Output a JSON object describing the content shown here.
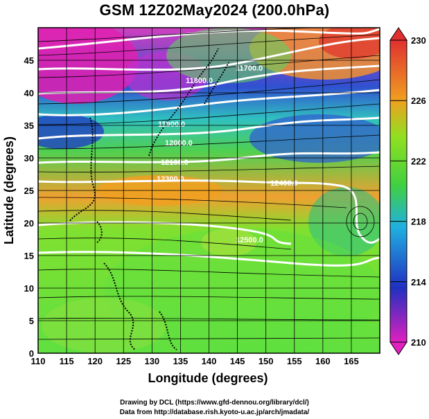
{
  "title": "GSM 12Z02May2024 (200.0hPa)",
  "x_axis": {
    "label": "Longitude (degrees)",
    "ticks": [
      "110",
      "115",
      "120",
      "125",
      "130",
      "135",
      "140",
      "145",
      "150",
      "155",
      "160",
      "165"
    ]
  },
  "y_axis": {
    "label": "Latitude  (degrees)",
    "ticks": [
      "0",
      "5",
      "10",
      "15",
      "20",
      "25",
      "30",
      "35",
      "40",
      "45"
    ]
  },
  "colorbar": {
    "labels": [
      "210",
      "214",
      "218",
      "222",
      "226",
      "230"
    ]
  },
  "contour_labels": [
    "11700.0",
    "11800.0",
    "11900.0",
    "12000.0",
    "12100.0",
    "12300.0",
    "12400.0",
    "12500.0"
  ],
  "credits": [
    "Drawing by DCL (https://www.gfd-dennou.org/library/dcl/)",
    "Data from http://database.rish.kyoto-u.ac.jp/arch/jmadata/"
  ],
  "colors": {
    "high": "#e03030",
    "warm": "#f0a020",
    "mid": "#40d040",
    "cool": "#20b0e0",
    "cold": "#2030c0",
    "low": "#e020c0"
  },
  "chart_data": {
    "type": "map",
    "xlim": [
      110,
      170
    ],
    "ylim": [
      0,
      50
    ],
    "variable_range": [
      210,
      230
    ],
    "streamlines": true,
    "contours": [
      11700,
      11800,
      11900,
      12000,
      12100,
      12300,
      12400,
      12500
    ]
  }
}
